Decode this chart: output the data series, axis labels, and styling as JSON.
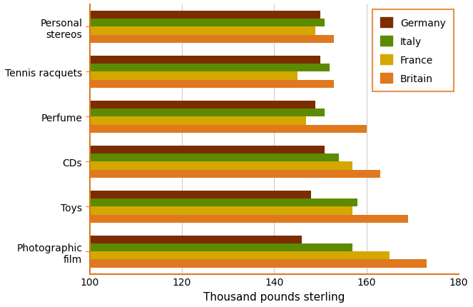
{
  "categories": [
    "Personal\nstereos",
    "Tennis racquets",
    "Perfume",
    "CDs",
    "Toys",
    "Photographic\nfilm"
  ],
  "series": {
    "Germany": [
      150,
      150,
      149,
      151,
      148,
      146
    ],
    "Italy": [
      151,
      152,
      151,
      154,
      158,
      157
    ],
    "France": [
      149,
      145,
      147,
      157,
      157,
      165
    ],
    "Britain": [
      153,
      153,
      160,
      163,
      169,
      173
    ]
  },
  "colors": {
    "Germany": "#7B2D00",
    "Italy": "#5C8A00",
    "France": "#D4A800",
    "Britain": "#E07820"
  },
  "xlim": [
    100,
    180
  ],
  "xticks": [
    100,
    120,
    140,
    160,
    180
  ],
  "xlabel": "Thousand pounds sterling",
  "legend_order": [
    "Germany",
    "Italy",
    "France",
    "Britain"
  ],
  "bar_height": 0.18
}
